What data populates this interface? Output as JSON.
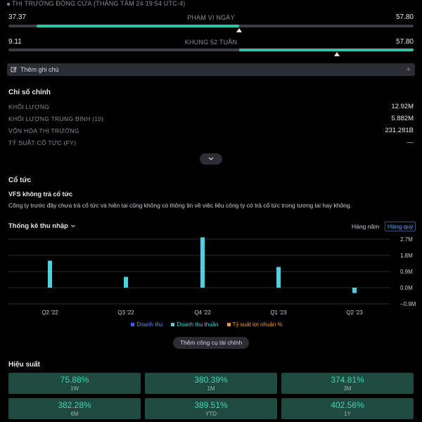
{
  "header": {
    "market_status": "THỊ TRƯỜNG ĐÓNG CỬA",
    "timestamp": "(THÁNG TÁM 24 19:54 UTC-4)"
  },
  "day_range": {
    "label": "PHẠM VI NGÀY",
    "low": "37.37",
    "high": "57.80",
    "fill_start": 0.07,
    "fill_end": 0.57,
    "marker": 0.57
  },
  "week52_range": {
    "label": "KHUNG 52 TUẦN",
    "low": "9.11",
    "high": "57.80",
    "fill_start": 0.57,
    "fill_end": 1.0,
    "marker": 0.81
  },
  "note_button": {
    "label": "Thêm ghi chú",
    "plus": "+"
  },
  "key_stats": {
    "title": "Chỉ số chính",
    "rows": [
      {
        "label": "KHỐI LƯỢNG",
        "value": "12.92M"
      },
      {
        "label": "KHỐI LƯỢNG TRUNG BÌNH (10)",
        "value": "5.882M"
      },
      {
        "label": "VỐN HÓA THỊ TRƯỜNG",
        "value": "231.281B"
      },
      {
        "label": "TỶ SUẤT CỔ TỨC (FY)",
        "value": "—"
      }
    ]
  },
  "dividends": {
    "title": "Cổ tức",
    "subtitle": "VFS không trả cổ tức",
    "description": "Công ty trước đây chưa trả cổ tức và hiện tại cũng không có thông tin về việc liệu công ty có trả cổ tức trong tương lai hay không."
  },
  "income": {
    "title": "Thống kê thu nhập",
    "tab_annual": "Hàng năm",
    "tab_quarterly": "Hàng quý"
  },
  "chart_data": {
    "type": "bar",
    "categories": [
      "Q2 '22",
      "Q3 '22",
      "Q4 '22",
      "Q1 '23",
      "Q2 '23"
    ],
    "series": [
      {
        "name": "Doanh thu thuần",
        "values": [
          1.5,
          0.6,
          2.8,
          1.15,
          -0.3
        ]
      }
    ],
    "yticks": [
      "2.7M",
      "1.8M",
      "0.9M",
      "0.0M",
      "−0.9M"
    ],
    "ylim": [
      -0.9,
      2.7
    ],
    "legend": [
      {
        "label": "Doanh thu",
        "color": "#2962ff"
      },
      {
        "label": "Doanh thu thuần",
        "color": "#4dd0e1"
      },
      {
        "label": "Tỷ suất lợi nhuận %",
        "color": "#ff9800"
      }
    ],
    "bar_color": "#4dd0e1"
  },
  "more_tools_button": "Thêm công cụ tài chính",
  "performance": {
    "title": "Hiệu suất",
    "items": [
      {
        "value": "75.88%",
        "label": "1W"
      },
      {
        "value": "380.39%",
        "label": "1M"
      },
      {
        "value": "374.81%",
        "label": "3M"
      },
      {
        "value": "382.28%",
        "label": "6M"
      },
      {
        "value": "389.51%",
        "label": "YTD"
      },
      {
        "value": "402.56%",
        "label": "1Y"
      }
    ]
  }
}
